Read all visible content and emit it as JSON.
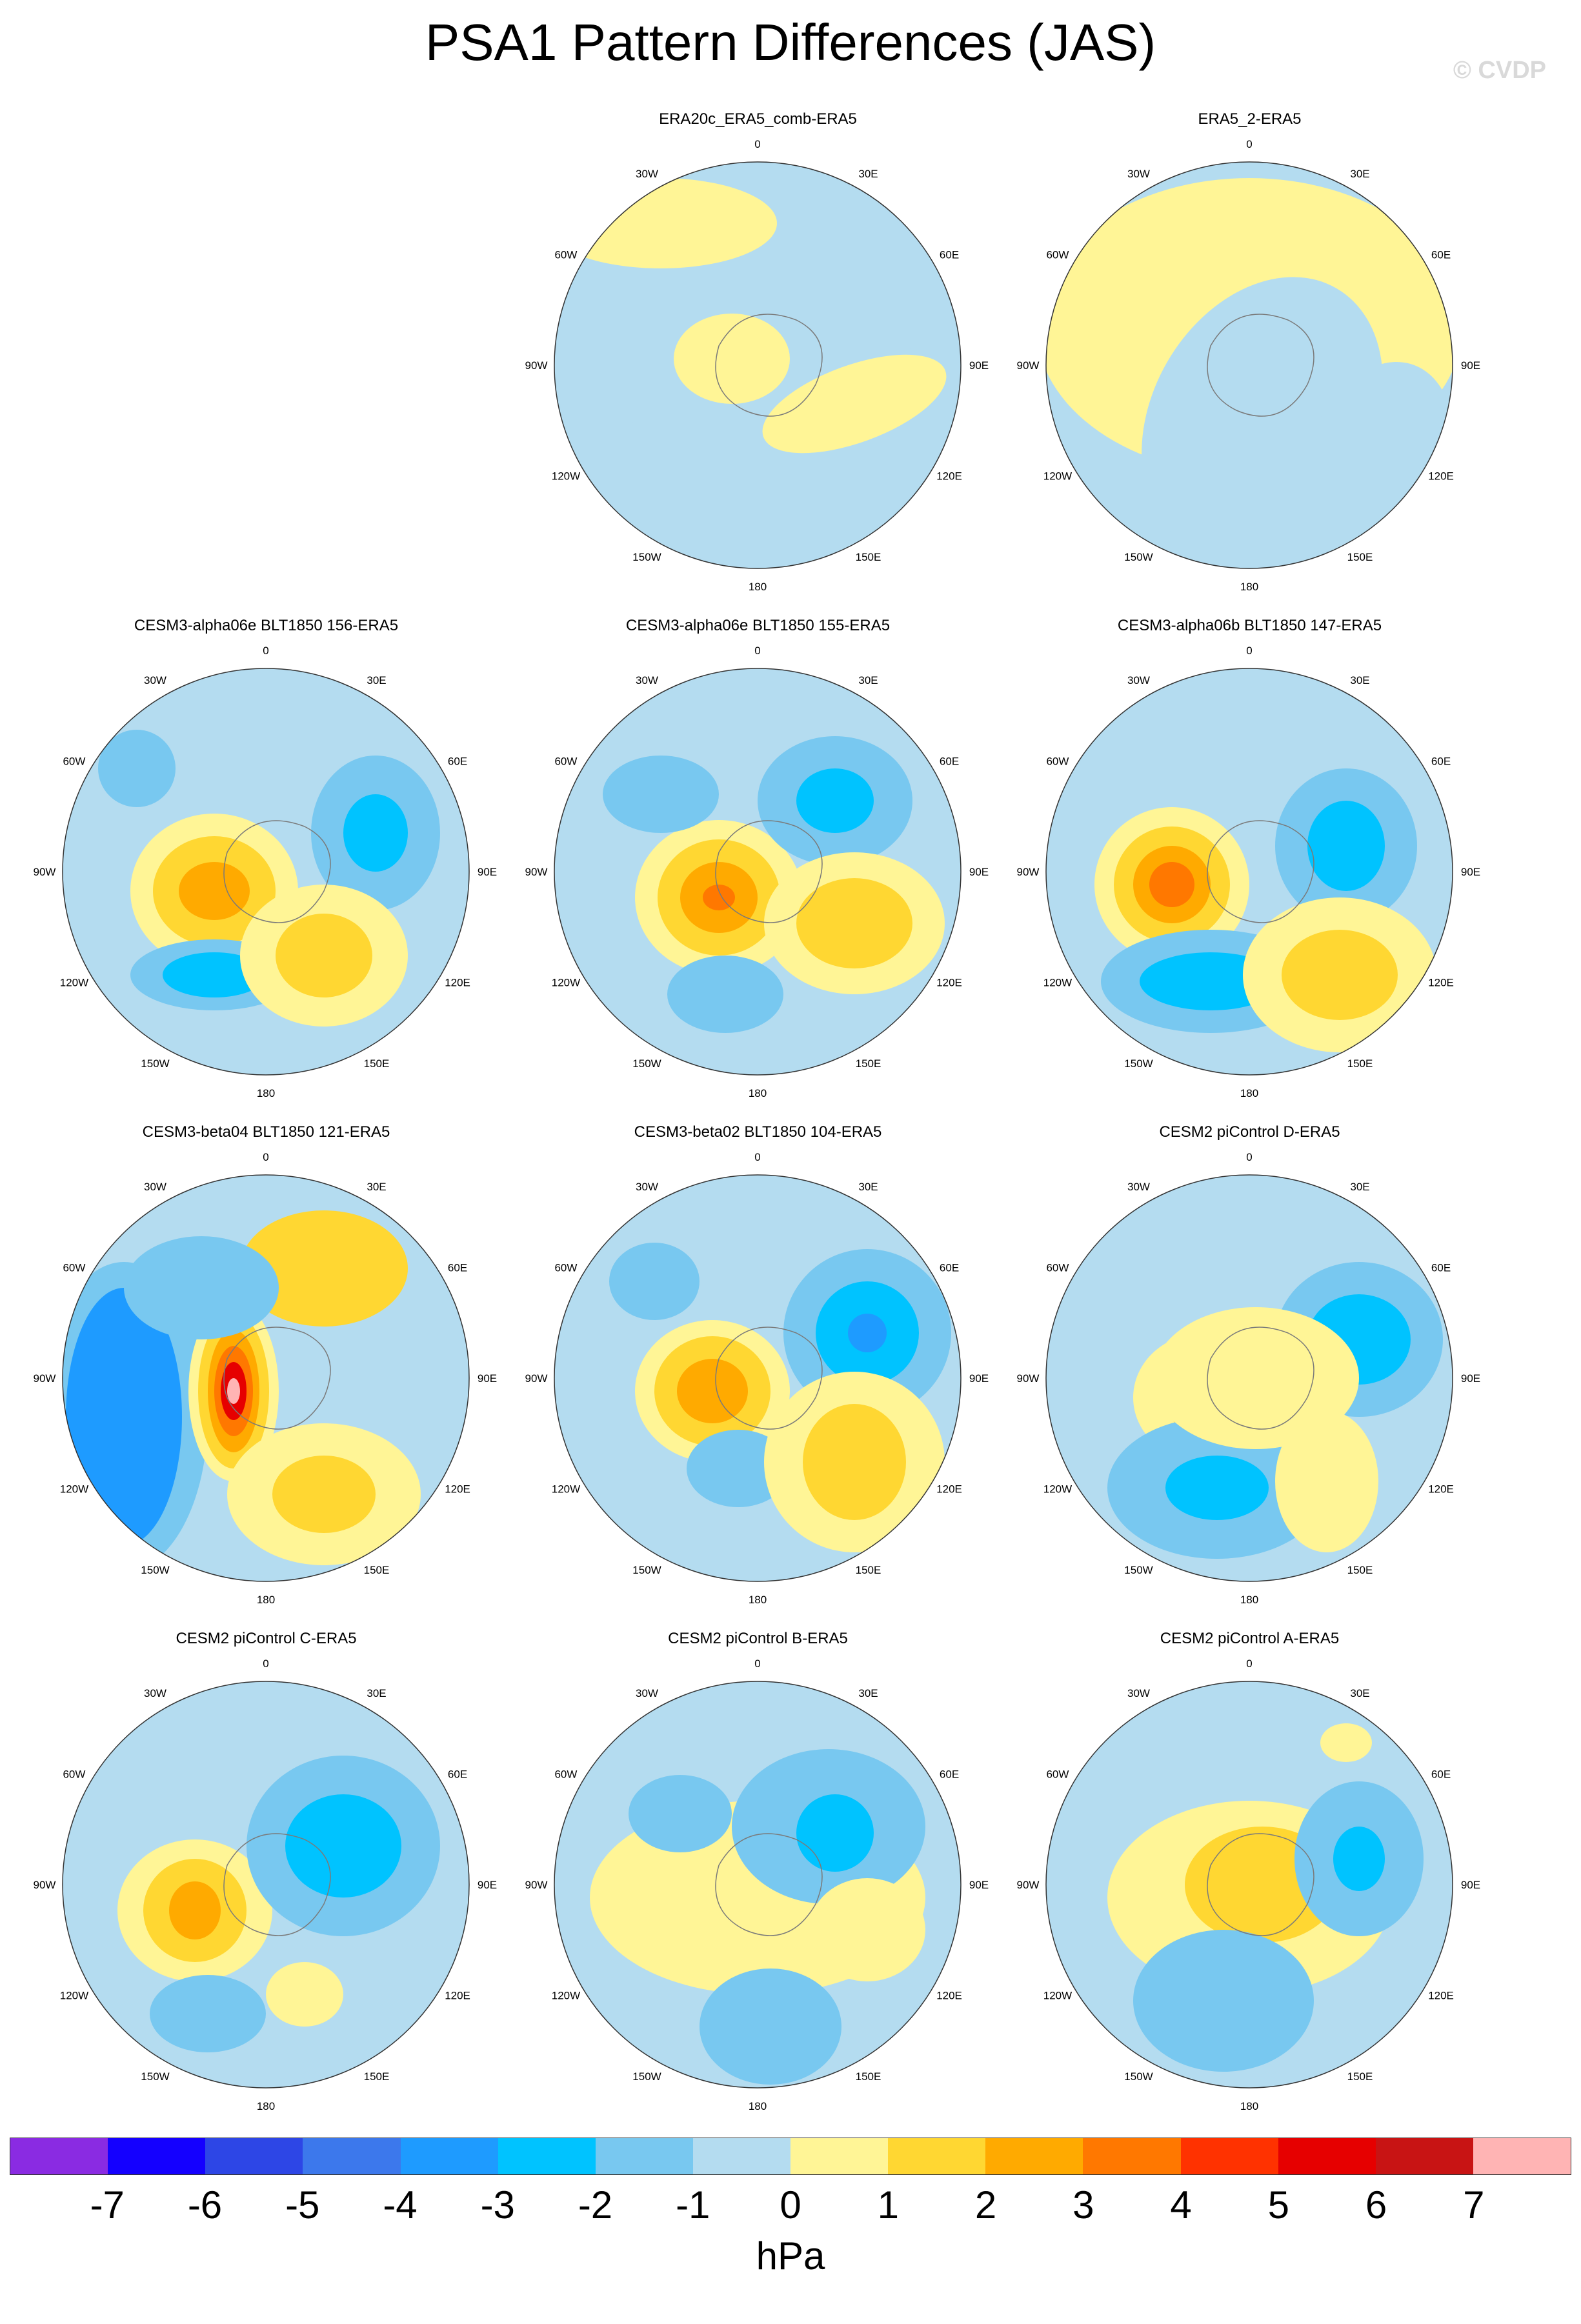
{
  "title": "PSA1 Pattern Differences (JAS)",
  "watermark": "© CVDP",
  "lon_labels": [
    "0",
    "30E",
    "60E",
    "90E",
    "120E",
    "150E",
    "180",
    "150W",
    "120W",
    "90W",
    "60W",
    "30W"
  ],
  "chart_data": {
    "type": "heatmap",
    "title": "PSA1 Pattern Differences (JAS)",
    "projection": "south-polar-stereographic",
    "units": "hPa",
    "colorbar": {
      "levels": [
        -7,
        -6,
        -5,
        -4,
        -3,
        -2,
        -1,
        0,
        1,
        2,
        3,
        4,
        5,
        6,
        7
      ],
      "colors": [
        "#8a2be2",
        "#1400ff",
        "#2d46e6",
        "#3c78ec",
        "#1e9bff",
        "#00c3ff",
        "#78c8f0",
        "#b4dcf0",
        "#fff596",
        "#ffd732",
        "#ffaa00",
        "#ff7800",
        "#ff3200",
        "#e60000",
        "#c81414",
        "#ffb4b4"
      ],
      "label": "hPa"
    },
    "panels": [
      {
        "id": "p1",
        "title": "ERA20c_ERA5_comb-ERA5",
        "row": 0,
        "col": 1
      },
      {
        "id": "p2",
        "title": "ERA5_2-ERA5",
        "row": 0,
        "col": 2
      },
      {
        "id": "p3",
        "title": "CESM3-alpha06e BLT1850 156-ERA5",
        "row": 1,
        "col": 0
      },
      {
        "id": "p4",
        "title": "CESM3-alpha06e BLT1850 155-ERA5",
        "row": 1,
        "col": 1
      },
      {
        "id": "p5",
        "title": "CESM3-alpha06b BLT1850 147-ERA5",
        "row": 1,
        "col": 2
      },
      {
        "id": "p6",
        "title": "CESM3-beta04 BLT1850 121-ERA5",
        "row": 2,
        "col": 0
      },
      {
        "id": "p7",
        "title": "CESM3-beta02 BLT1850 104-ERA5",
        "row": 2,
        "col": 1
      },
      {
        "id": "p8",
        "title": "CESM2 piControl D-ERA5",
        "row": 2,
        "col": 2
      },
      {
        "id": "p9",
        "title": "CESM2 piControl C-ERA5",
        "row": 3,
        "col": 0
      },
      {
        "id": "p10",
        "title": "CESM2 piControl B-ERA5",
        "row": 3,
        "col": 1
      },
      {
        "id": "p11",
        "title": "CESM2 piControl A-ERA5",
        "row": 3,
        "col": 2
      }
    ]
  }
}
